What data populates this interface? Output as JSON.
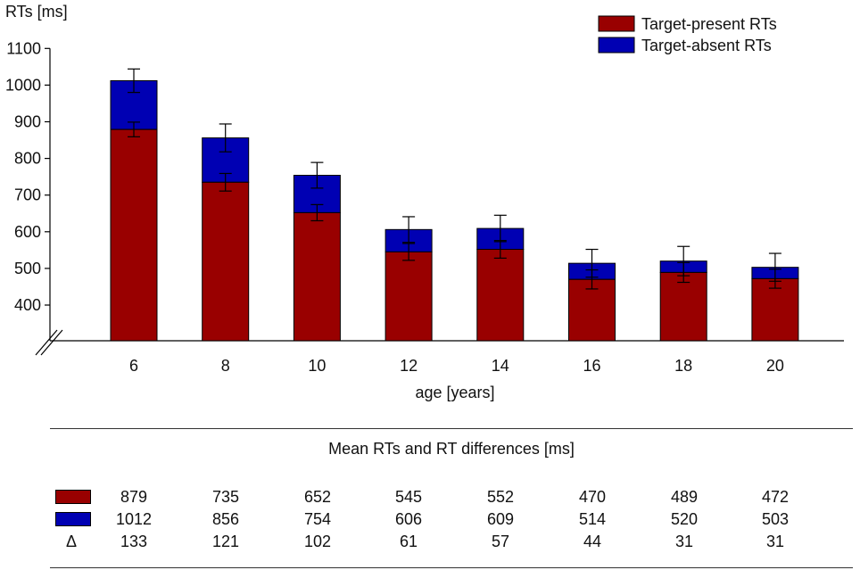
{
  "chart_data": {
    "type": "bar",
    "stacked": true,
    "ylabel": "RTs [ms]",
    "xlabel": "age [years]",
    "ylim": [
      300,
      1100
    ],
    "axis_break": true,
    "yticks": [
      400,
      500,
      600,
      700,
      800,
      900,
      1000,
      1100
    ],
    "categories": [
      "6",
      "8",
      "10",
      "12",
      "14",
      "16",
      "18",
      "20"
    ],
    "series": [
      {
        "name": "Target-present RTs",
        "color": "#990000",
        "values": [
          879,
          735,
          652,
          545,
          552,
          470,
          489,
          472
        ],
        "error": [
          20,
          24,
          22,
          23,
          24,
          26,
          27,
          26
        ]
      },
      {
        "name": "Target-absent RTs",
        "color": "#0000b3",
        "values": [
          1012,
          856,
          754,
          606,
          609,
          514,
          520,
          503
        ],
        "error": [
          32,
          38,
          35,
          35,
          36,
          38,
          40,
          38
        ]
      }
    ],
    "legend": "top-right"
  },
  "table": {
    "title": "Mean RTs and RT differences [ms]",
    "delta_symbol": "Δ",
    "rows": [
      {
        "key": "present",
        "values": [
          "879",
          "735",
          "652",
          "545",
          "552",
          "470",
          "489",
          "472"
        ]
      },
      {
        "key": "absent",
        "values": [
          "1012",
          "856",
          "754",
          "606",
          "609",
          "514",
          "520",
          "503"
        ]
      },
      {
        "key": "delta",
        "values": [
          "133",
          "121",
          "102",
          "61",
          "57",
          "44",
          "31",
          "31"
        ]
      }
    ]
  }
}
